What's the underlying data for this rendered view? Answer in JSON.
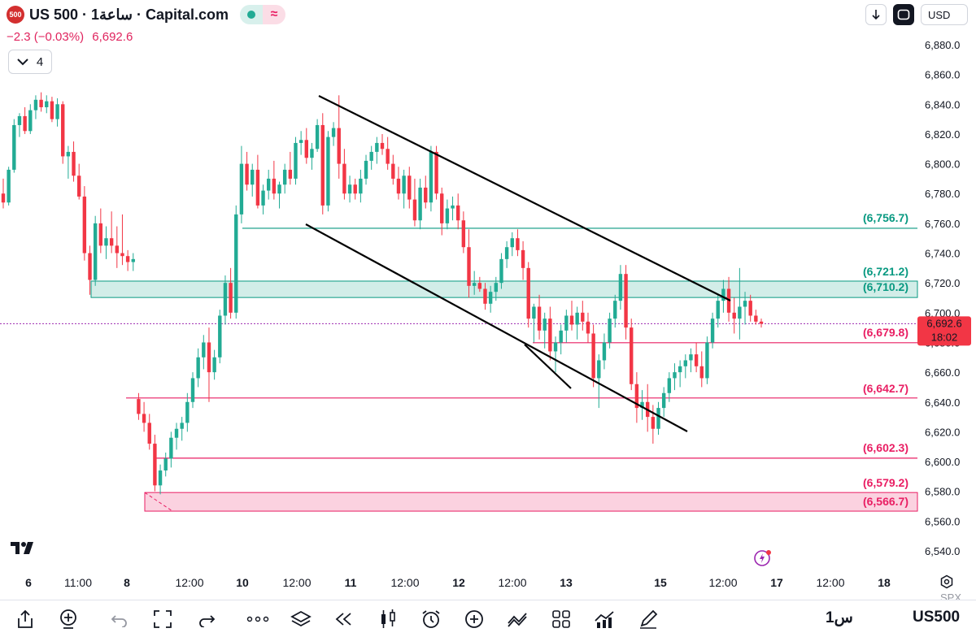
{
  "header": {
    "symbol_badge": "500",
    "title": "US 500 · 1ساعة · Capital.com",
    "change": "−2.3 (−0.03%)",
    "last_price": "6,692.6",
    "indicators_count": "4",
    "currency": "USD"
  },
  "price_axis": {
    "ticks": [
      "6,880.0",
      "6,860.0",
      "6,840.0",
      "6,820.0",
      "6,800.0",
      "6,780.0",
      "6,760.0",
      "6,740.0",
      "6,720.0",
      "6,700.0",
      "6,680.0",
      "6,660.0",
      "6,640.0",
      "6,620.0",
      "6,600.0",
      "6,580.0",
      "6,560.0",
      "6,540.0"
    ],
    "current_price": "6,692.6",
    "countdown": "18:02",
    "current_price_color": "#f23645"
  },
  "time_axis": {
    "labels": [
      "6",
      "11:00",
      "8",
      "12:00",
      "10",
      "12:00",
      "11",
      "12:00",
      "12",
      "12:00",
      "13",
      "15",
      "12:00",
      "17",
      "12:00",
      "18"
    ]
  },
  "levels": [
    {
      "label": "(6,756.7)",
      "color": "#089981"
    },
    {
      "label": "(6,721.2)",
      "color": "#089981"
    },
    {
      "label": "(6,710.2)",
      "color": "#089981"
    },
    {
      "label": "(6,679.8)",
      "color": "#e91e63"
    },
    {
      "label": "(6,642.7)",
      "color": "#e91e63"
    },
    {
      "label": "(6,602.3)",
      "color": "#e91e63"
    },
    {
      "label": "(6,579.2)",
      "color": "#e91e63"
    },
    {
      "label": "(6,566.7)",
      "color": "#e91e63"
    }
  ],
  "chart_data": {
    "type": "candlestick",
    "ylim": [
      6530,
      6890
    ],
    "candles": [
      [
        6780,
        6790,
        6770,
        6774
      ],
      [
        6774,
        6798,
        6772,
        6796
      ],
      [
        6796,
        6830,
        6794,
        6826
      ],
      [
        6826,
        6834,
        6818,
        6832
      ],
      [
        6832,
        6838,
        6820,
        6822
      ],
      [
        6822,
        6840,
        6820,
        6836
      ],
      [
        6836,
        6846,
        6830,
        6843
      ],
      [
        6843,
        6848,
        6835,
        6838
      ],
      [
        6838,
        6846,
        6834,
        6842
      ],
      [
        6842,
        6845,
        6828,
        6830
      ],
      [
        6830,
        6844,
        6825,
        6840
      ],
      [
        6840,
        6842,
        6800,
        6805
      ],
      [
        6805,
        6812,
        6790,
        6808
      ],
      [
        6808,
        6815,
        6788,
        6792
      ],
      [
        6792,
        6800,
        6776,
        6778
      ],
      [
        6778,
        6785,
        6735,
        6740
      ],
      [
        6740,
        6745,
        6712,
        6722
      ],
      [
        6722,
        6765,
        6718,
        6760
      ],
      [
        6760,
        6770,
        6740,
        6745
      ],
      [
        6745,
        6758,
        6736,
        6750
      ],
      [
        6750,
        6768,
        6740,
        6745
      ],
      [
        6745,
        6758,
        6730,
        6740
      ],
      [
        6740,
        6766,
        6732,
        6738
      ],
      [
        6738,
        6742,
        6728,
        6734
      ],
      [
        6734,
        6740,
        6728,
        6736
      ],
      [
        6642,
        6646,
        6628,
        6632
      ],
      [
        6632,
        6640,
        6620,
        6626
      ],
      [
        6626,
        6632,
        6608,
        6612
      ],
      [
        6612,
        6618,
        6580,
        6584
      ],
      [
        6584,
        6598,
        6578,
        6594
      ],
      [
        6594,
        6606,
        6590,
        6602
      ],
      [
        6602,
        6620,
        6596,
        6616
      ],
      [
        6616,
        6626,
        6608,
        6622
      ],
      [
        6622,
        6630,
        6614,
        6626
      ],
      [
        6626,
        6646,
        6620,
        6640
      ],
      [
        6640,
        6660,
        6636,
        6656
      ],
      [
        6656,
        6676,
        6650,
        6670
      ],
      [
        6670,
        6685,
        6662,
        6680
      ],
      [
        6680,
        6690,
        6640,
        6660
      ],
      [
        6660,
        6675,
        6655,
        6670
      ],
      [
        6670,
        6702,
        6666,
        6698
      ],
      [
        6698,
        6725,
        6692,
        6720
      ],
      [
        6720,
        6730,
        6696,
        6700
      ],
      [
        6700,
        6772,
        6696,
        6766
      ],
      [
        6766,
        6812,
        6760,
        6800
      ],
      [
        6800,
        6808,
        6782,
        6786
      ],
      [
        6786,
        6800,
        6778,
        6796
      ],
      [
        6796,
        6806,
        6770,
        6772
      ],
      [
        6772,
        6786,
        6766,
        6782
      ],
      [
        6782,
        6796,
        6776,
        6790
      ],
      [
        6790,
        6802,
        6776,
        6780
      ],
      [
        6780,
        6788,
        6770,
        6786
      ],
      [
        6786,
        6800,
        6780,
        6796
      ],
      [
        6796,
        6808,
        6786,
        6790
      ],
      [
        6790,
        6818,
        6786,
        6814
      ],
      [
        6814,
        6822,
        6806,
        6816
      ],
      [
        6816,
        6824,
        6800,
        6804
      ],
      [
        6804,
        6814,
        6796,
        6810
      ],
      [
        6810,
        6830,
        6808,
        6826
      ],
      [
        6826,
        6834,
        6766,
        6772
      ],
      [
        6772,
        6822,
        6768,
        6818
      ],
      [
        6818,
        6828,
        6812,
        6824
      ],
      [
        6824,
        6846,
        6790,
        6800
      ],
      [
        6800,
        6810,
        6776,
        6780
      ],
      [
        6780,
        6792,
        6774,
        6786
      ],
      [
        6786,
        6790,
        6776,
        6780
      ],
      [
        6780,
        6796,
        6774,
        6790
      ],
      [
        6790,
        6806,
        6786,
        6802
      ],
      [
        6802,
        6812,
        6796,
        6808
      ],
      [
        6808,
        6818,
        6800,
        6814
      ],
      [
        6814,
        6820,
        6806,
        6810
      ],
      [
        6810,
        6818,
        6796,
        6800
      ],
      [
        6800,
        6806,
        6786,
        6790
      ],
      [
        6790,
        6798,
        6776,
        6780
      ],
      [
        6780,
        6796,
        6770,
        6792
      ],
      [
        6792,
        6798,
        6770,
        6776
      ],
      [
        6776,
        6790,
        6758,
        6762
      ],
      [
        6762,
        6790,
        6756,
        6784
      ],
      [
        6784,
        6792,
        6770,
        6774
      ],
      [
        6774,
        6812,
        6768,
        6808
      ],
      [
        6808,
        6812,
        6776,
        6780
      ],
      [
        6780,
        6784,
        6752,
        6760
      ],
      [
        6760,
        6776,
        6756,
        6770
      ],
      [
        6770,
        6778,
        6762,
        6772
      ],
      [
        6772,
        6780,
        6756,
        6762
      ],
      [
        6762,
        6768,
        6740,
        6744
      ],
      [
        6744,
        6756,
        6710,
        6718
      ],
      [
        6718,
        6728,
        6712,
        6720
      ],
      [
        6720,
        6724,
        6714,
        6716
      ],
      [
        6716,
        6720,
        6702,
        6706
      ],
      [
        6706,
        6718,
        6700,
        6714
      ],
      [
        6714,
        6724,
        6708,
        6720
      ],
      [
        6720,
        6740,
        6716,
        6736
      ],
      [
        6736,
        6748,
        6730,
        6744
      ],
      [
        6744,
        6754,
        6738,
        6750
      ],
      [
        6750,
        6756,
        6738,
        6742
      ],
      [
        6742,
        6748,
        6722,
        6730
      ],
      [
        6730,
        6734,
        6690,
        6696
      ],
      [
        6696,
        6706,
        6680,
        6704
      ],
      [
        6704,
        6712,
        6682,
        6688
      ],
      [
        6688,
        6700,
        6676,
        6696
      ],
      [
        6696,
        6704,
        6668,
        6674
      ],
      [
        6674,
        6684,
        6660,
        6680
      ],
      [
        6680,
        6692,
        6672,
        6688
      ],
      [
        6688,
        6702,
        6680,
        6698
      ],
      [
        6698,
        6708,
        6688,
        6692
      ],
      [
        6692,
        6704,
        6682,
        6700
      ],
      [
        6700,
        6708,
        6688,
        6694
      ],
      [
        6694,
        6700,
        6680,
        6686
      ],
      [
        6686,
        6692,
        6650,
        6656
      ],
      [
        6656,
        6672,
        6636,
        6668
      ],
      [
        6668,
        6686,
        6662,
        6680
      ],
      [
        6680,
        6700,
        6676,
        6696
      ],
      [
        6696,
        6712,
        6690,
        6708
      ],
      [
        6708,
        6732,
        6702,
        6726
      ],
      [
        6726,
        6732,
        6682,
        6690
      ],
      [
        6690,
        6696,
        6648,
        6652
      ],
      [
        6652,
        6660,
        6626,
        6636
      ],
      [
        6636,
        6648,
        6628,
        6640
      ],
      [
        6640,
        6652,
        6620,
        6630
      ],
      [
        6630,
        6638,
        6612,
        6622
      ],
      [
        6622,
        6640,
        6618,
        6636
      ],
      [
        6636,
        6650,
        6630,
        6646
      ],
      [
        6646,
        6660,
        6640,
        6656
      ],
      [
        6656,
        6666,
        6648,
        6660
      ],
      [
        6660,
        6668,
        6650,
        6664
      ],
      [
        6664,
        6672,
        6656,
        6668
      ],
      [
        6668,
        6676,
        6660,
        6672
      ],
      [
        6672,
        6680,
        6660,
        6664
      ],
      [
        6664,
        6674,
        6650,
        6656
      ],
      [
        6656,
        6684,
        6652,
        6680
      ],
      [
        6680,
        6700,
        6676,
        6696
      ],
      [
        6696,
        6712,
        6690,
        6708
      ],
      [
        6708,
        6722,
        6700,
        6716
      ],
      [
        6716,
        6724,
        6694,
        6700
      ],
      [
        6700,
        6710,
        6686,
        6696
      ],
      [
        6696,
        6730,
        6682,
        6704
      ],
      [
        6704,
        6714,
        6692,
        6708
      ],
      [
        6708,
        6712,
        6694,
        6698
      ],
      [
        6698,
        6702,
        6692,
        6694
      ],
      [
        6694,
        6696,
        6690,
        6692.6
      ]
    ],
    "levels": [
      6756.7,
      6721.2,
      6710.2,
      6679.8,
      6642.7,
      6602.3,
      6579.2,
      6566.7
    ],
    "current_price": 6692.6
  },
  "toolbar": {
    "interval": "1س",
    "symbol": "US500",
    "exchange": "SPX"
  }
}
